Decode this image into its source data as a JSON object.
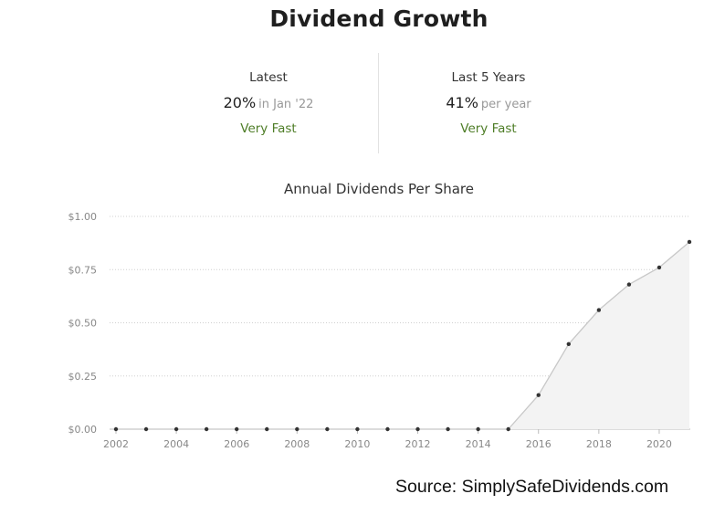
{
  "header": {
    "title": "Dividend Growth"
  },
  "stats": {
    "latest": {
      "label": "Latest",
      "value": "20%",
      "suffix": "in Jan '22",
      "rating": "Very Fast"
    },
    "last5": {
      "label": "Last 5 Years",
      "value": "41%",
      "suffix": "per year",
      "rating": "Very Fast"
    }
  },
  "source": "Source: SimplySafeDividends.com",
  "colors": {
    "rating": "#4e7d27",
    "line": "#c8c8c8",
    "area": "#f3f3f3",
    "point": "#333333",
    "grid": "#d0d0d0"
  },
  "chart_data": {
    "type": "area",
    "title": "Annual Dividends Per Share",
    "xlabel": "",
    "ylabel": "",
    "x": [
      2002,
      2003,
      2004,
      2005,
      2006,
      2007,
      2008,
      2009,
      2010,
      2011,
      2012,
      2013,
      2014,
      2015,
      2016,
      2017,
      2018,
      2019,
      2020,
      2021
    ],
    "series": [
      {
        "values": [
          0,
          0,
          0,
          0,
          0,
          0,
          0,
          0,
          0,
          0,
          0,
          0,
          0,
          0,
          0.16,
          0.4,
          0.56,
          0.68,
          0.76,
          0.88
        ]
      }
    ],
    "x_ticks": [
      "2002",
      "2004",
      "2006",
      "2008",
      "2010",
      "2012",
      "2014",
      "2016",
      "2018",
      "2020"
    ],
    "y_ticks": [
      "$0.00",
      "$0.25",
      "$0.50",
      "$0.75",
      "$1.00"
    ],
    "ylim": [
      0,
      1
    ],
    "xlim": [
      2002,
      2021
    ],
    "grid": true,
    "legend": "none"
  }
}
